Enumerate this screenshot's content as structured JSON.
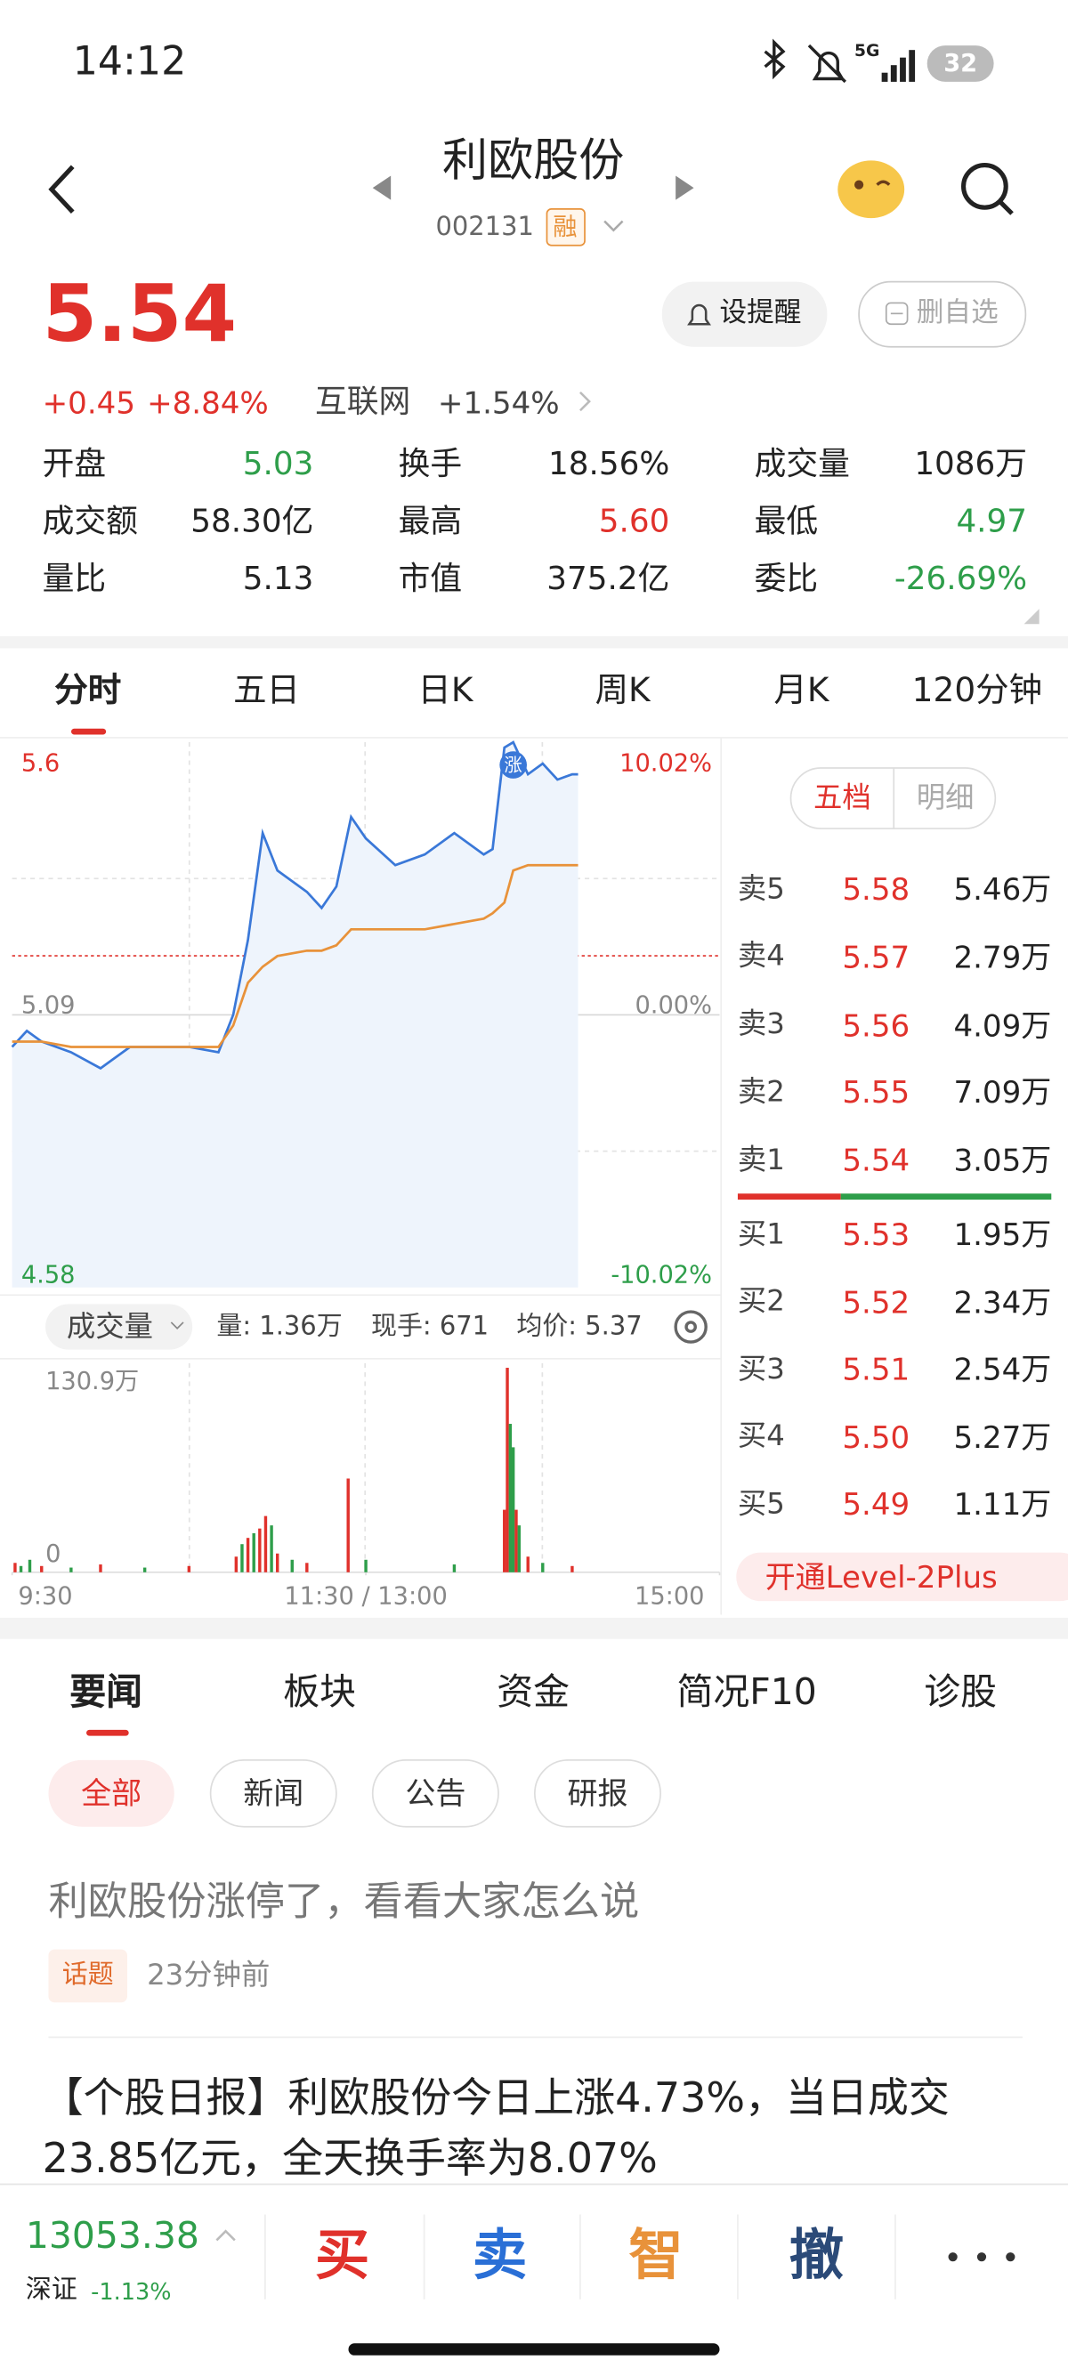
{
  "status_bar": {
    "time": "14:12",
    "signal": "5G",
    "battery": "32"
  },
  "header": {
    "title": "利欧股份",
    "code": "002131",
    "badge": "融"
  },
  "quote": {
    "price": "5.54",
    "change": "+0.45",
    "change_pct": "+8.84%",
    "sector": "互联网",
    "sector_change": "+1.54%",
    "buttons": [
      "设提醒",
      "删自选"
    ]
  },
  "stats": [
    {
      "label": "开盘",
      "value": "5.03",
      "color": "#2e9e4a"
    },
    {
      "label": "换手",
      "value": "18.56%",
      "color": "#222222"
    },
    {
      "label": "成交量",
      "value": "1086万",
      "color": "#222222"
    },
    {
      "label": "成交额",
      "value": "58.30亿",
      "color": "#222222"
    },
    {
      "label": "最高",
      "value": "5.60",
      "color": "#e0312b"
    },
    {
      "label": "最低",
      "value": "4.97",
      "color": "#2e9e4a"
    },
    {
      "label": "量比",
      "value": "5.13",
      "color": "#222222"
    },
    {
      "label": "市值",
      "value": "375.2亿",
      "color": "#222222"
    },
    {
      "label": "委比",
      "value": "-26.69%",
      "color": "#2e9e4a"
    }
  ],
  "chart_tabs": [
    "分时",
    "五日",
    "日K",
    "周K",
    "月K",
    "120分钟"
  ],
  "chart_data": [
    {
      "type": "line",
      "annotation": "涨",
      "xlim": [
        0,
        240
      ],
      "ylim": [
        4.58,
        5.6
      ],
      "yticks": [
        4.58,
        5.09,
        5.6
      ],
      "y2lim": [
        -10.02,
        10.02
      ],
      "y2ticks": [
        {
          "value": -10.02,
          "label": "-10.02%"
        },
        {
          "value": 0,
          "label": "0.00%"
        },
        {
          "value": 10.02,
          "label": "10.02%"
        }
      ],
      "x": [
        0,
        5,
        10,
        20,
        30,
        40,
        50,
        60,
        70,
        75,
        80,
        85,
        90,
        100,
        105,
        110,
        115,
        120,
        130,
        140,
        150,
        160,
        163,
        167,
        170,
        175,
        180,
        185,
        190,
        192
      ],
      "series": [
        {
          "color": "#3a78d8",
          "values": [
            5.03,
            5.06,
            5.04,
            5.02,
            4.99,
            5.03,
            5.03,
            5.03,
            5.02,
            5.09,
            5.23,
            5.43,
            5.36,
            5.32,
            5.29,
            5.33,
            5.46,
            5.42,
            5.37,
            5.39,
            5.43,
            5.39,
            5.4,
            5.59,
            5.6,
            5.54,
            5.56,
            5.53,
            5.54,
            5.54
          ]
        },
        {
          "color": "#e8923a",
          "values": [
            5.04,
            5.04,
            5.04,
            5.03,
            5.03,
            5.03,
            5.03,
            5.03,
            5.03,
            5.07,
            5.15,
            5.18,
            5.2,
            5.21,
            5.21,
            5.22,
            5.25,
            5.25,
            5.25,
            5.25,
            5.26,
            5.27,
            5.28,
            5.3,
            5.36,
            5.37,
            5.37,
            5.37,
            5.37,
            5.37
          ]
        }
      ]
    },
    {
      "type": "bar",
      "xlim": [
        0,
        240
      ],
      "ylim": [
        0,
        130.9
      ],
      "yticks": [
        0,
        {
          "value": 130.9,
          "label": "130.9万"
        }
      ],
      "xticks": [
        {
          "value": 0,
          "label": "9:30"
        },
        {
          "value": 120,
          "label": "11:30 / 13:00"
        },
        {
          "value": 240,
          "label": "15:00"
        }
      ],
      "x": [
        1,
        3,
        6,
        10,
        20,
        30,
        45,
        60,
        76,
        78,
        80,
        82,
        84,
        86,
        88,
        90,
        95,
        100,
        114,
        120,
        150,
        167,
        168,
        169,
        170,
        171,
        172,
        175,
        180,
        190
      ],
      "values": [
        6,
        4,
        8,
        4,
        3,
        5,
        3,
        4,
        10,
        18,
        22,
        25,
        28,
        36,
        30,
        12,
        8,
        6,
        60,
        8,
        5,
        40,
        130.9,
        95,
        80,
        40,
        30,
        10,
        6,
        4
      ],
      "colors": [
        "#e0312b",
        "#2e9e4a",
        "#2e9e4a",
        "#e0312b",
        "#2e9e4a",
        "#e0312b",
        "#2e9e4a",
        "#e0312b",
        "#e0312b",
        "#2e9e4a",
        "#e0312b",
        "#2e9e4a",
        "#e0312b",
        "#e0312b",
        "#2e9e4a",
        "#e0312b",
        "#2e9e4a",
        "#e0312b",
        "#e0312b",
        "#2e9e4a",
        "#2e9e4a",
        "#e0312b",
        "#e0312b",
        "#2e9e4a",
        "#2e9e4a",
        "#e0312b",
        "#2e9e4a",
        "#e0312b",
        "#2e9e4a",
        "#e0312b"
      ]
    }
  ],
  "volume_header": {
    "selector": "成交量",
    "items": [
      "量: 1.36万",
      "现手: 671",
      "均价: 5.37"
    ]
  },
  "order_book": {
    "tabs": [
      "五档",
      "明细"
    ],
    "asks": [
      {
        "label": "卖5",
        "price": "5.58",
        "volume": "5.46万"
      },
      {
        "label": "卖4",
        "price": "5.57",
        "volume": "2.79万"
      },
      {
        "label": "卖3",
        "price": "5.56",
        "volume": "4.09万"
      },
      {
        "label": "卖2",
        "price": "5.55",
        "volume": "7.09万"
      },
      {
        "label": "卖1",
        "price": "5.54",
        "volume": "3.05万"
      }
    ],
    "bids": [
      {
        "label": "买1",
        "price": "5.53",
        "volume": "1.95万"
      },
      {
        "label": "买2",
        "price": "5.52",
        "volume": "2.34万"
      },
      {
        "label": "买3",
        "price": "5.51",
        "volume": "2.54万"
      },
      {
        "label": "买4",
        "price": "5.50",
        "volume": "5.27万"
      },
      {
        "label": "买5",
        "price": "5.49",
        "volume": "1.11万"
      }
    ],
    "link": "开通Level-2Plus"
  },
  "news": {
    "tabs": [
      "要闻",
      "板块",
      "资金",
      "简况F10",
      "诊股"
    ],
    "filters": [
      "全部",
      "新闻",
      "公告",
      "研报"
    ],
    "items": [
      {
        "title": "利欧股份涨停了，看看大家怎么说",
        "tag": "话题",
        "time": "23分钟前"
      },
      {
        "title": "【个股日报】利欧股份今日上涨4.73%，当日成交23.85亿元，全天换手率为8.07%"
      }
    ]
  },
  "bottom_bar": {
    "index_value": "13053.38",
    "index_name": "深证",
    "index_change": "-1.13%",
    "actions": [
      "买",
      "卖",
      "智",
      "撤"
    ]
  }
}
